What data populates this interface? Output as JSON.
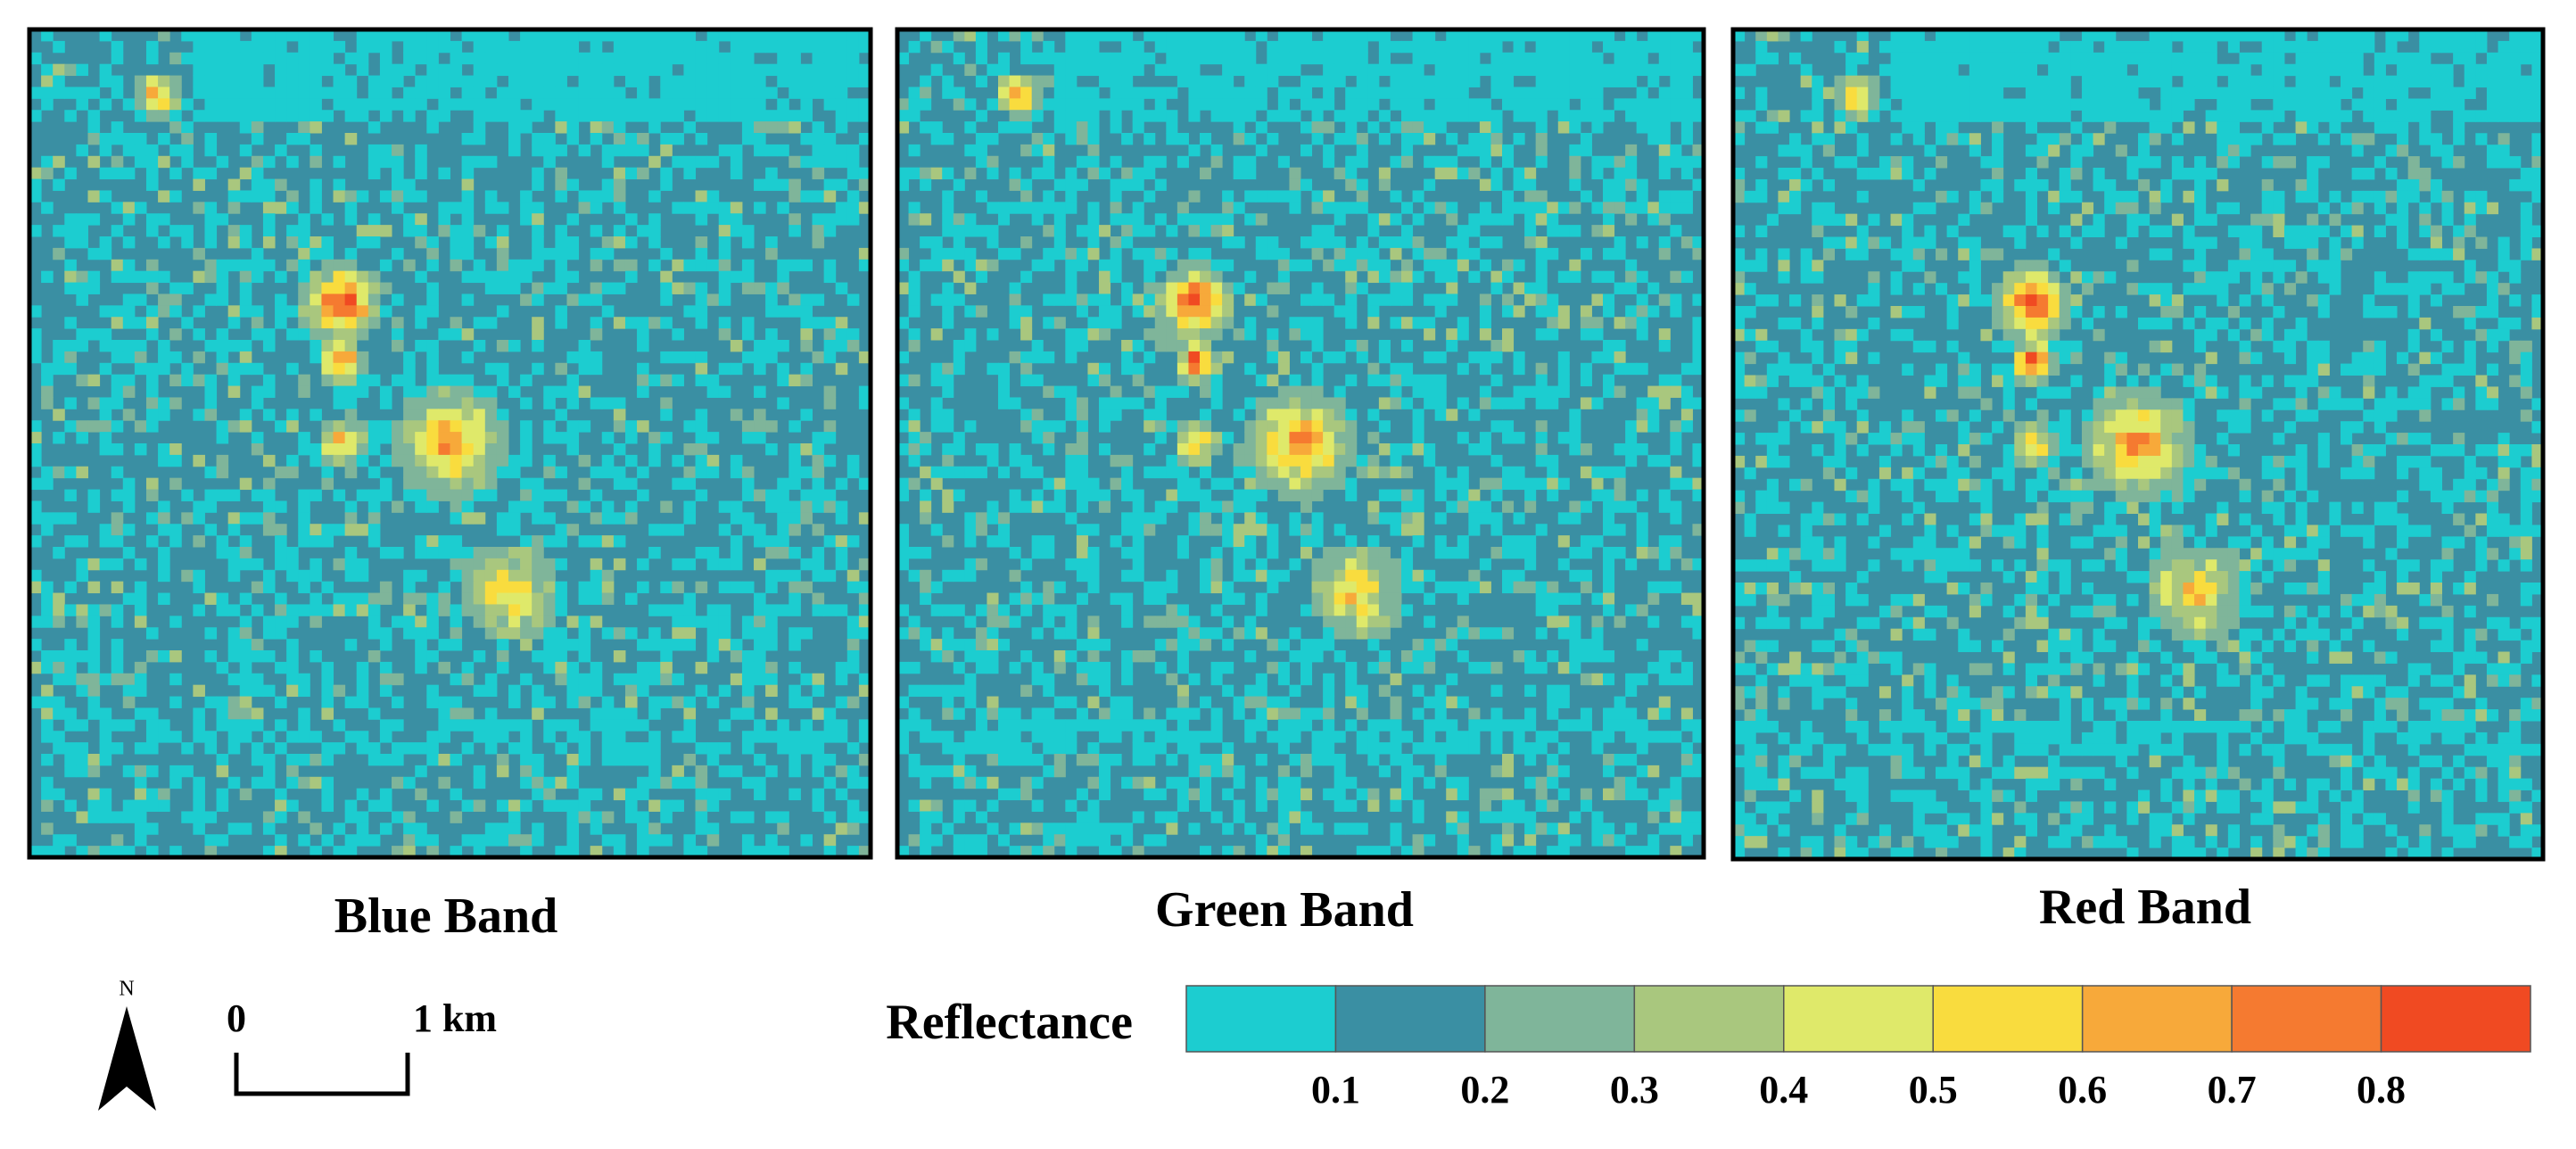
{
  "panels": [
    {
      "label": "Blue Band"
    },
    {
      "label": "Green Band"
    },
    {
      "label": "Red Band"
    }
  ],
  "north": "N",
  "scale_bar": {
    "start": "0",
    "end": "1 km"
  },
  "legend": {
    "title": "Reflectance",
    "colors": [
      "#1ccdd0",
      "#3a8fa3",
      "#7fb59a",
      "#a9c77e",
      "#dfe96a",
      "#f9dc3e",
      "#f7a93a",
      "#f57a30",
      "#f04a22"
    ],
    "ticks": [
      "0.1",
      "0.2",
      "0.3",
      "0.4",
      "0.5",
      "0.6",
      "0.7",
      "0.8"
    ]
  }
}
